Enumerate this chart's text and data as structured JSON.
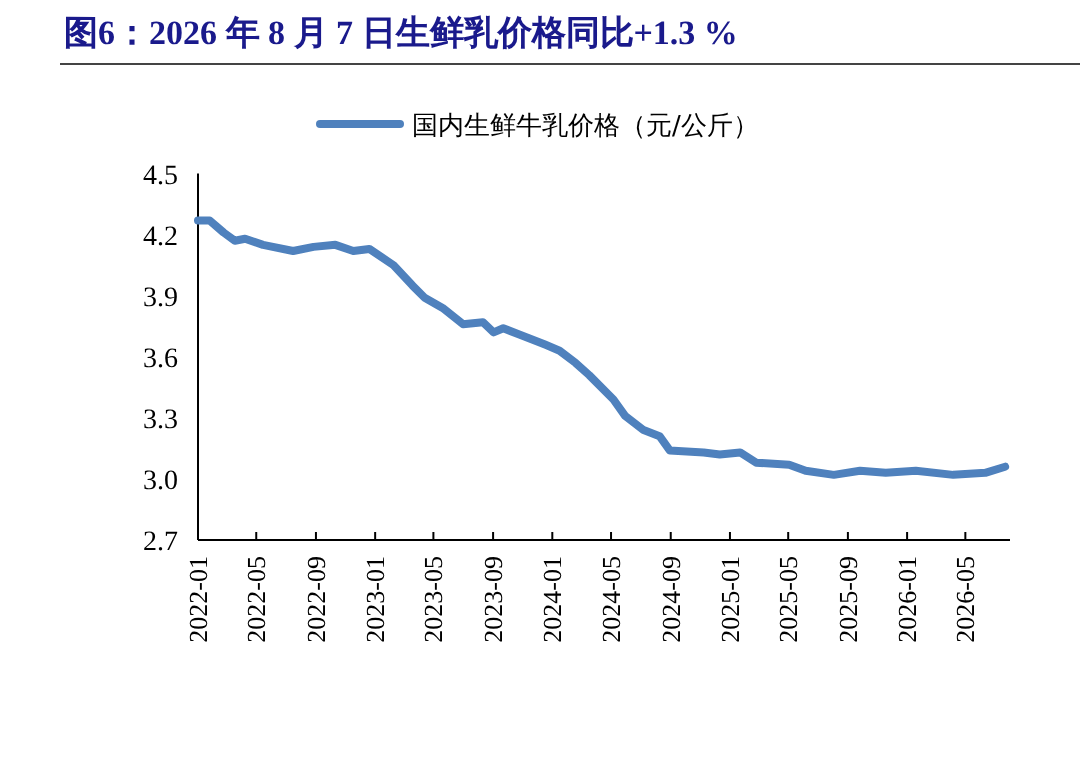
{
  "chart_data": {
    "type": "line",
    "title": "图6：2026 年 8 月 7 日生鲜乳价格同比+1.3 %",
    "x": [
      "2022-01-01",
      "2022-01-25",
      "2022-02-23",
      "2022-03-18",
      "2022-04-08",
      "2022-05-15",
      "2022-07-16",
      "2022-08-27",
      "2022-10-11",
      "2022-11-17",
      "2022-12-20",
      "2023-02-08",
      "2023-03-19",
      "2023-04-13",
      "2023-05-20",
      "2023-07-01",
      "2023-08-11",
      "2023-09-02",
      "2023-09-22",
      "2023-10-25",
      "2023-12-17",
      "2024-01-16",
      "2024-02-18",
      "2024-03-17",
      "2024-05-06",
      "2024-05-30",
      "2024-07-07",
      "2024-08-09",
      "2024-08-30",
      "2024-11-08",
      "2024-12-11",
      "2025-01-22",
      "2025-02-24",
      "2025-05-03",
      "2025-06-06",
      "2025-08-03",
      "2025-09-26",
      "2025-11-18",
      "2026-01-19",
      "2026-04-06",
      "2026-06-11",
      "2026-07-22"
    ],
    "series": [
      {
        "name": "国内生鲜牛乳价格（元/公斤）",
        "color": "#4f81bd",
        "values": [
          4.27,
          4.27,
          4.21,
          4.17,
          4.18,
          4.15,
          4.12,
          4.14,
          4.15,
          4.12,
          4.13,
          4.05,
          3.95,
          3.89,
          3.84,
          3.76,
          3.77,
          3.72,
          3.74,
          3.71,
          3.66,
          3.63,
          3.57,
          3.51,
          3.39,
          3.31,
          3.24,
          3.21,
          3.14,
          3.13,
          3.12,
          3.13,
          3.08,
          3.07,
          3.04,
          3.02,
          3.04,
          3.03,
          3.04,
          3.02,
          3.03,
          3.06
        ]
      }
    ],
    "xlim": [
      "2022-01",
      "2026-08"
    ],
    "xticks": [
      "2022-01",
      "2022-05",
      "2022-09",
      "2023-01",
      "2023-05",
      "2023-09",
      "2024-01",
      "2024-05",
      "2024-09",
      "2025-01",
      "2025-05",
      "2025-09",
      "2026-01",
      "2026-05"
    ],
    "ylim": [
      2.7,
      4.5
    ],
    "yticks": [
      2.7,
      {
        "value": 3.0,
        "label": "3.0"
      },
      3.3,
      3.6,
      3.9,
      4.2,
      4.5
    ],
    "legend": "top"
  }
}
